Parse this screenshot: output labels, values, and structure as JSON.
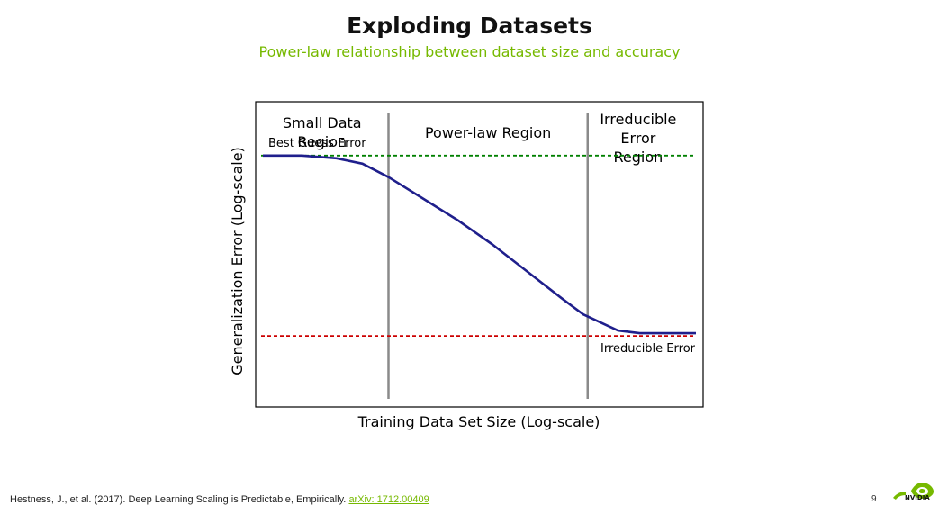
{
  "slide": {
    "title": "Exploding Datasets",
    "subtitle": "Power-law relationship between dataset size and accuracy",
    "page_number": "9",
    "citation": "Hestness, J., et al. (2017). Deep Learning Scaling is Predictable, Empirically.",
    "citation_link": "arXiv: 1712.00409",
    "logo_text": "NVIDIA",
    "accent_color": "#76b900"
  },
  "chart_data": {
    "type": "line",
    "xlabel": "Training Data Set Size (Log-scale)",
    "ylabel": "Generalization Error (Log-scale)",
    "x_ticks_shown": false,
    "y_ticks_shown": false,
    "regions": [
      "Small Data\nRegion",
      "Power-law Region",
      "Irreducible\nError\nRegion"
    ],
    "region_boundaries": [
      0.29,
      0.75
    ],
    "reference_lines": [
      {
        "label": "Best Guess Error",
        "value": 0.8,
        "color": "#008000",
        "style": "dashed"
      },
      {
        "label": "Irreducible Error",
        "value": 0.13,
        "color": "#cc0000",
        "style": "dashed"
      }
    ],
    "series": [
      {
        "color": "#1f1f8c",
        "x": [
          0.0,
          0.09,
          0.17,
          0.23,
          0.29,
          0.37,
          0.45,
          0.53,
          0.61,
          0.69,
          0.74,
          0.78,
          0.82,
          0.87,
          0.92,
          1.0
        ],
        "y": [
          0.8,
          0.8,
          0.79,
          0.77,
          0.72,
          0.64,
          0.56,
          0.47,
          0.37,
          0.27,
          0.21,
          0.18,
          0.15,
          0.14,
          0.14,
          0.14
        ]
      }
    ],
    "xlim": [
      0,
      1
    ],
    "ylim": [
      0,
      1
    ]
  }
}
